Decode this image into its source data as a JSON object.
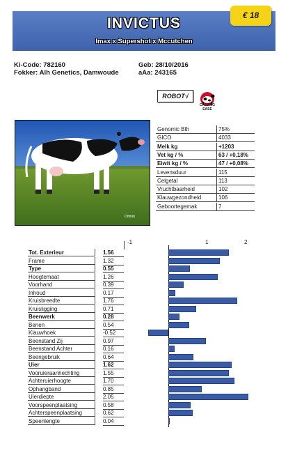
{
  "header": {
    "title": "INVICTUS",
    "pedigree": "Imax x Supershot x Mccutchen",
    "price": "€ 18",
    "banner_color": "#4a6fb8",
    "price_color": "#f5d316"
  },
  "info": {
    "kicode": "Ki-Code: 782160",
    "fokker": "Fokker: Alh Genetics, Damwoude",
    "geb": "Geb: 28/10/2016",
    "aaa": "aAa: 243165"
  },
  "badges": {
    "robot": "ROBOT√",
    "calving_line1": "CALVING",
    "calving_line2": "EASE",
    "calving_icon": "calving-ease-logo"
  },
  "photo": {
    "watermark": "Omnia",
    "subject": "holstein-cow-photo"
  },
  "genomic": [
    {
      "label": "Genomic Bth",
      "value": "75%",
      "bold": false
    },
    {
      "label": "GICO",
      "value": "4033",
      "bold": false
    },
    {
      "label": "Melk kg",
      "value": "+1203",
      "bold": true
    },
    {
      "label": "Vet kg / %",
      "value": "63 / +0,18%",
      "bold": true
    },
    {
      "label": "Eiwit kg / %",
      "value": "47 / +0,08%",
      "bold": true
    },
    {
      "label": "Levensduur",
      "value": "115",
      "bold": false
    },
    {
      "label": "Celgetal",
      "value": "113",
      "bold": false
    },
    {
      "label": "Vruchtbaarheid",
      "value": "102",
      "bold": false
    },
    {
      "label": "Klauwgezondheid",
      "value": "106",
      "bold": false
    },
    {
      "label": "Geboortegemak",
      "value": "7",
      "bold": false
    }
  ],
  "chart_data": {
    "type": "bar",
    "orientation": "horizontal",
    "axis_ticks": [
      -1,
      1,
      2
    ],
    "xlim": [
      -1.6,
      2.1
    ],
    "bar_color": "#3a5ca7",
    "categories": [
      "Tot. Exterieur",
      "Frame",
      "Type",
      "Hoogtemaat",
      "Voorhand",
      "Inhoud",
      "Kruisbreedte",
      "Kruisligging",
      "Beenwerk",
      "Benen",
      "Klauwhoek",
      "Beenstand Zij",
      "Beenstand Achter",
      "Beengebruik",
      "Uier",
      "Vooruieraanhechting",
      "Achteruierhoogte",
      "Ophangband",
      "Uierdiepte",
      "Voorspeenplaatsing",
      "Achterspeenplaatsing",
      "Speenlengte"
    ],
    "labels": [
      "1.56",
      "1.32",
      "0.55",
      "1.26",
      "0.39",
      "0.17",
      "1.76",
      "0.71",
      "0.28",
      "0.54",
      "-0.52",
      "0.97",
      "0.16",
      "0.64",
      "1.62",
      "1.55",
      "1.70",
      "0.85",
      "2.05",
      "0.58",
      "0.62",
      "0.04"
    ],
    "values": [
      1.56,
      1.32,
      0.55,
      1.26,
      0.39,
      0.17,
      1.76,
      0.71,
      0.28,
      0.54,
      -0.52,
      0.97,
      0.16,
      0.64,
      1.62,
      1.55,
      1.7,
      0.85,
      2.05,
      0.58,
      0.62,
      0.04
    ],
    "bold": [
      true,
      false,
      true,
      false,
      false,
      false,
      false,
      false,
      true,
      false,
      false,
      false,
      false,
      false,
      true,
      false,
      false,
      false,
      false,
      false,
      false,
      false
    ]
  }
}
